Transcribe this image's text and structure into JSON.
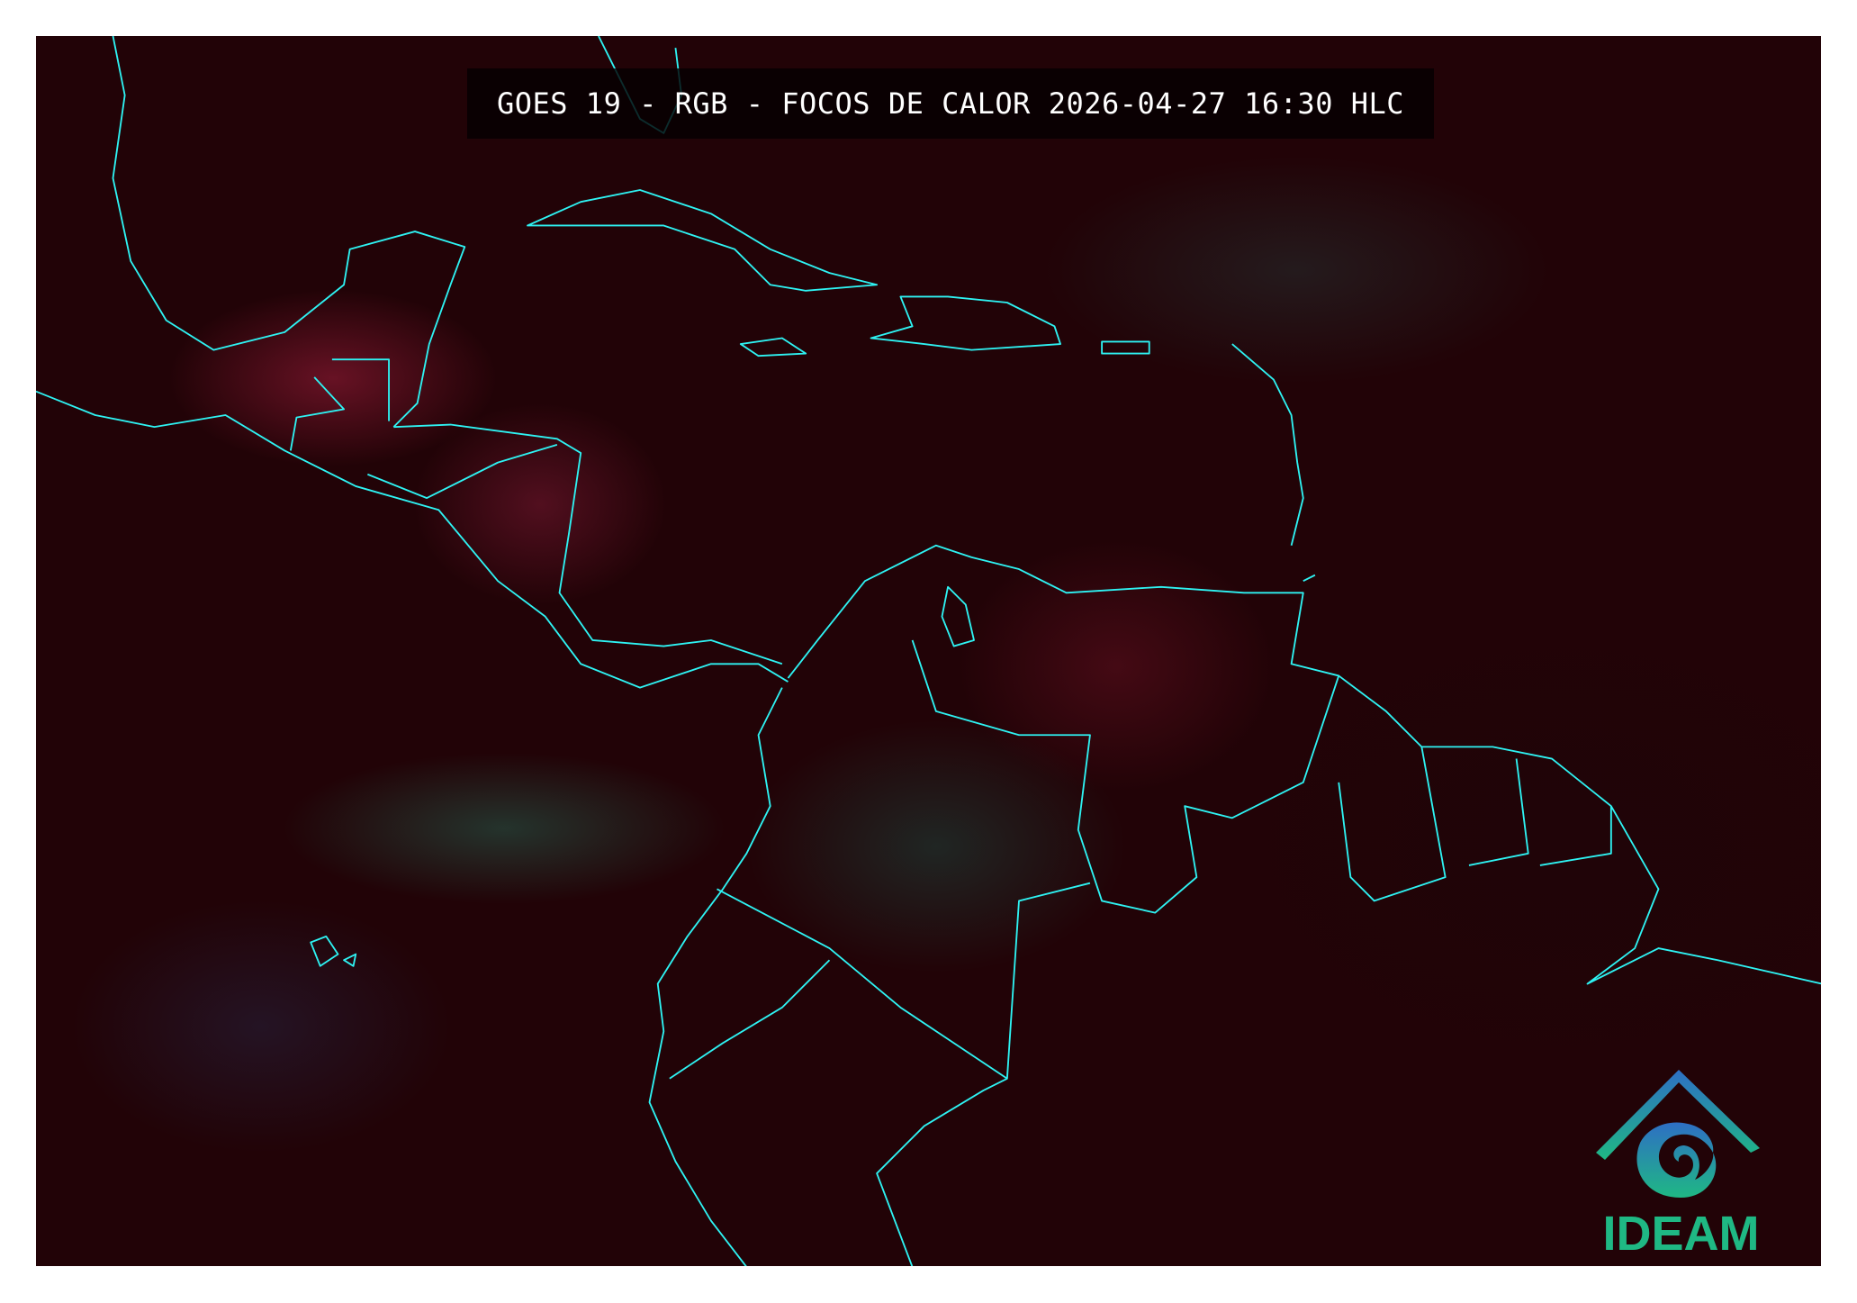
{
  "title": "GOES 19 - RGB - FOCOS DE CALOR 2026-04-27 16:30 HLC",
  "logo": {
    "text": "IDEAM",
    "colors": {
      "top": "#2e6fc4",
      "bottom": "#1fb884"
    }
  },
  "map": {
    "region": "Caribbean, Central America and northern South America",
    "boundary_color": "#2ef3f3",
    "background_color": "#220307"
  }
}
